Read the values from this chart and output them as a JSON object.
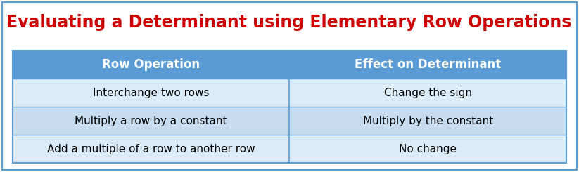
{
  "title": "Evaluating a Determinant using Elementary Row Operations",
  "title_color": "#CC0000",
  "title_fontsize": 17,
  "title_fontweight": "bold",
  "header": [
    "Row Operation",
    "Effect on Determinant"
  ],
  "header_bg": "#5B9BD5",
  "header_text_color": "#FFFFFF",
  "header_fontsize": 12,
  "rows": [
    [
      "Interchange two rows",
      "Change the sign"
    ],
    [
      "Multiply a row by a constant",
      "Multiply by the constant"
    ],
    [
      "Add a multiple of a row to another row",
      "No change"
    ]
  ],
  "row_bg_odd": "#DAEAF7",
  "row_bg_even": "#C5DCF0",
  "row_text_color": "#000000",
  "row_fontsize": 11,
  "border_color": "#5B9BD5",
  "fig_bg": "#FFFFFF",
  "outer_border_color": "#5B9BD5"
}
